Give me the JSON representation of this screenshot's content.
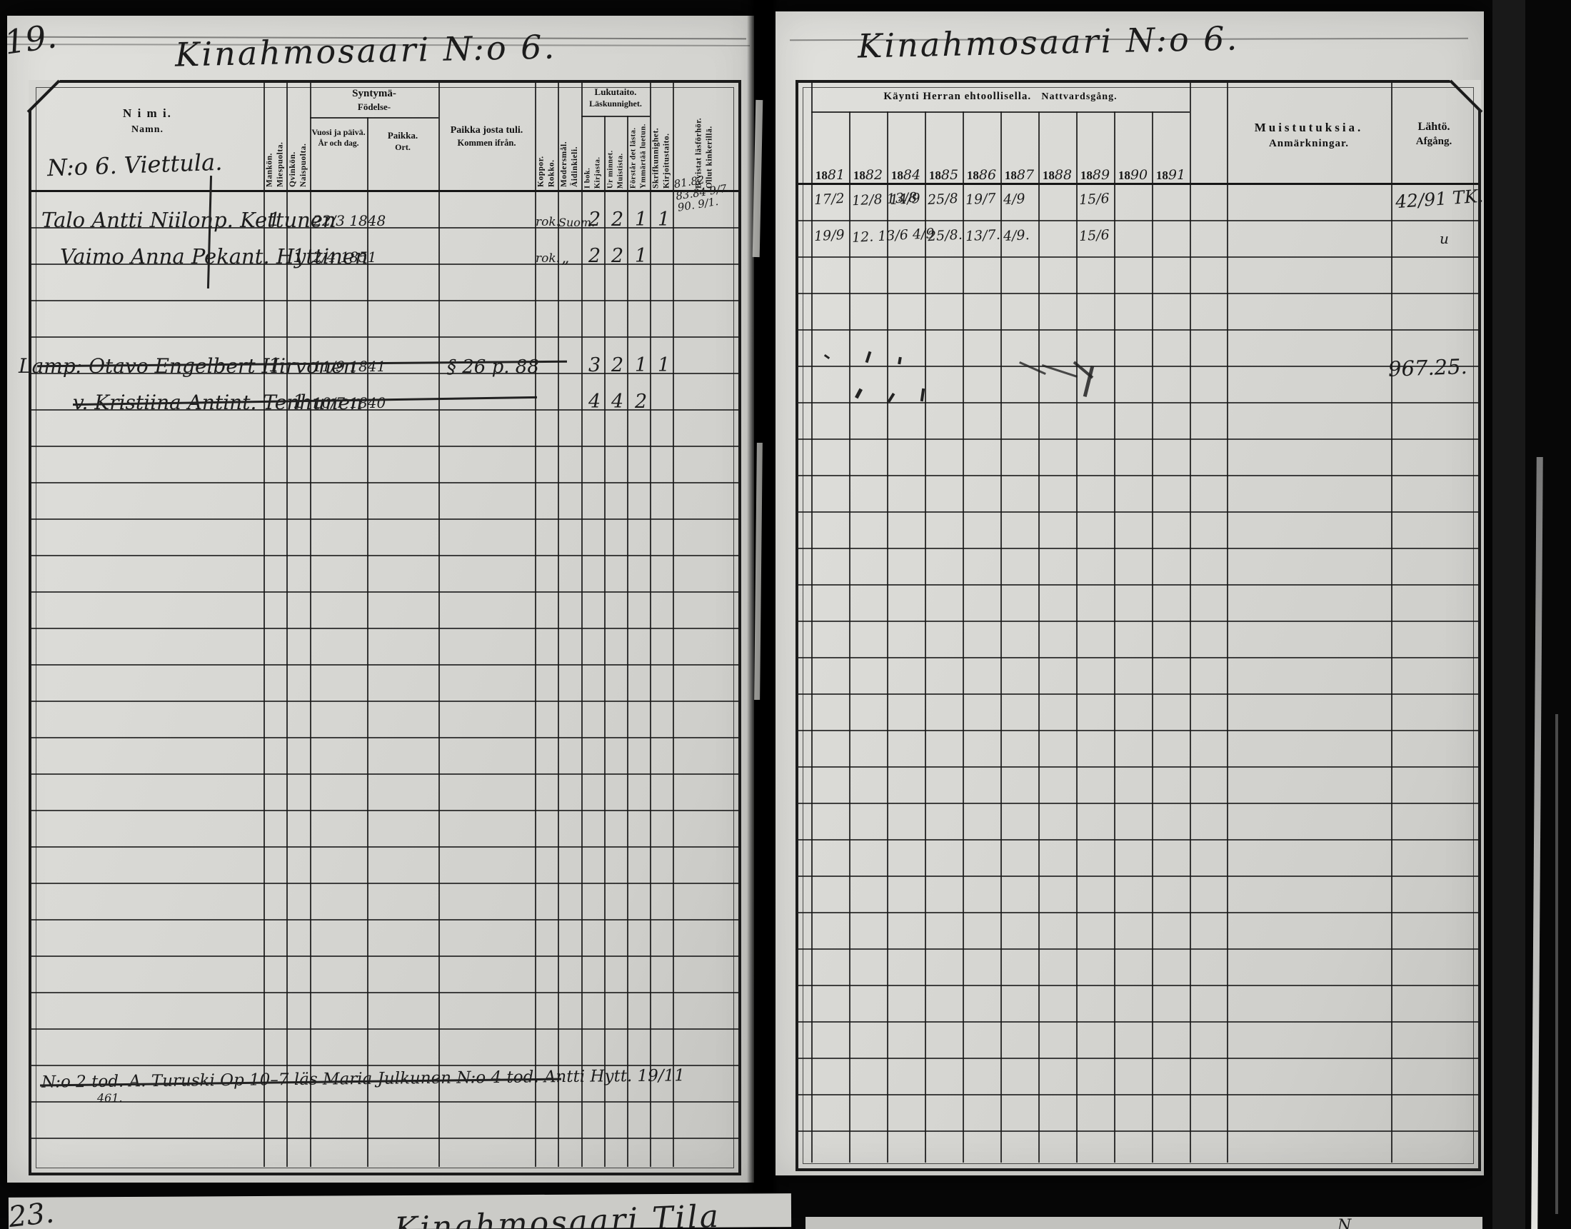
{
  "left": {
    "page_number": "19.",
    "title": "Kinahmosaari N:o 6.",
    "script_heading": "N:o 6. Viettula.",
    "cols": {
      "nimi": "N i m i.",
      "namn": "Namn.",
      "miespuolta": "Miespuolta.",
      "mankon": "Mankön.",
      "naispuolta": "Naispuolta.",
      "qvinkon": "Qvinkön.",
      "syntyma": "Syntymä-",
      "fodelse": "Födelse-",
      "vuosi_ja_paiva": "Vuosi ja päivä.",
      "ar_och_dag": "År och dag.",
      "paikka": "Paikka.",
      "ort": "Ort.",
      "paikka_josta_tuli": "Paikka josta tuli.",
      "kommen_ifran": "Kommen ifrån.",
      "rokko": "Rokko.",
      "koppor": "Koppor.",
      "aidinkieli": "Äidinkieli.",
      "modersmal": "Modersmål.",
      "lukutaito": "Lukutaito.",
      "laskunnighet": "Läskunnighet.",
      "kirjasta": "Kirjasta.",
      "i_bok": "I bok.",
      "muistista": "Muistista.",
      "ur_minnet": "Ur minnet.",
      "ymmartaa_luetun": "Ymmärtää luetun.",
      "forstar_det_lasta": "Förstår det lästa.",
      "kirjoitustaito": "Kirjoitustaito.",
      "skrifkunnighet": "Skrifkunnighet.",
      "ollut_kinkerilla": "Ollut kinkerillä.",
      "bevistat_lasforhor": "Bevistat läsförhör."
    },
    "rows": [
      {
        "name": "Talo Antti Niilonp. Kettunen",
        "male": "1",
        "female": "",
        "born": "22/3 1848",
        "from": "",
        "rokko": "rok.",
        "lang": "Suom.",
        "read_book": "2",
        "read_memory": "2",
        "understands": "1",
        "writes": "1",
        "kinkeri": "81.82.\n83.84 9/7.\n90. 9/1."
      },
      {
        "name": "Vaimo Anna Pekant. Hyttinen",
        "male": "",
        "female": "1",
        "born": "2/4 1851",
        "from": "",
        "rokko": "rok.",
        "lang": "„",
        "read_book": "2",
        "read_memory": "2",
        "understands": "1",
        "writes": "",
        "kinkeri": ""
      },
      {
        "name": "Lamp: Otavo Engelbert Hirvonen",
        "male": "1",
        "female": "",
        "born": "11/9 1841",
        "from": "§ 26 p. 88",
        "rokko": "",
        "lang": "",
        "read_book": "3",
        "read_memory": "2",
        "understands": "1",
        "writes": "1",
        "kinkeri": ""
      },
      {
        "name": "v. Kristiina Antint. Tenhunen",
        "male": "",
        "female": "1",
        "born": "10/7 1840",
        "from": "",
        "rokko": "",
        "lang": "",
        "read_book": "4",
        "read_memory": "4",
        "understands": "2",
        "writes": "",
        "kinkeri": ""
      }
    ],
    "footer_note": "N:o 2 tod. A. Turuski   Op 10–7 läs Maria Julkunen    N:o 4 tod. Antti Hytt. 19/11",
    "footer_note_number": "461."
  },
  "right": {
    "title": "Kinahmosaari N:o 6.",
    "group_fi": "Käynti Herran ehtoollisella.",
    "group_sv": "Nattvardsgång.",
    "years": [
      "1881",
      "1882",
      "1884",
      "1885",
      "1886",
      "1887",
      "1888",
      "1889",
      "1890",
      "1891"
    ],
    "muistutuksia": "Muistutuksia.",
    "anmarkningar": "Anmärkningar.",
    "lahto": "Lähtö.",
    "afgang": "Afgång.",
    "communion_rows": [
      {
        "c0": "17/2",
        "c1": "12/8 13/8",
        "c2": "14/9",
        "c3": "25/8",
        "c4": "19/7",
        "c5": "4/9",
        "c7": "15/6"
      },
      {
        "c0": "19/9",
        "c1": "12. 13/6 4/9",
        "c3": "25/8.",
        "c4": "13/7.",
        "c5": "4/9.",
        "c7": "15/6"
      }
    ],
    "departure": {
      "r0": "42/91 TK.",
      "r1": "u"
    },
    "amount_note": "967.25."
  },
  "below": {
    "left_page_number": "23.",
    "left_title": "Kinahmosaari Tila",
    "right_mark": "N"
  }
}
